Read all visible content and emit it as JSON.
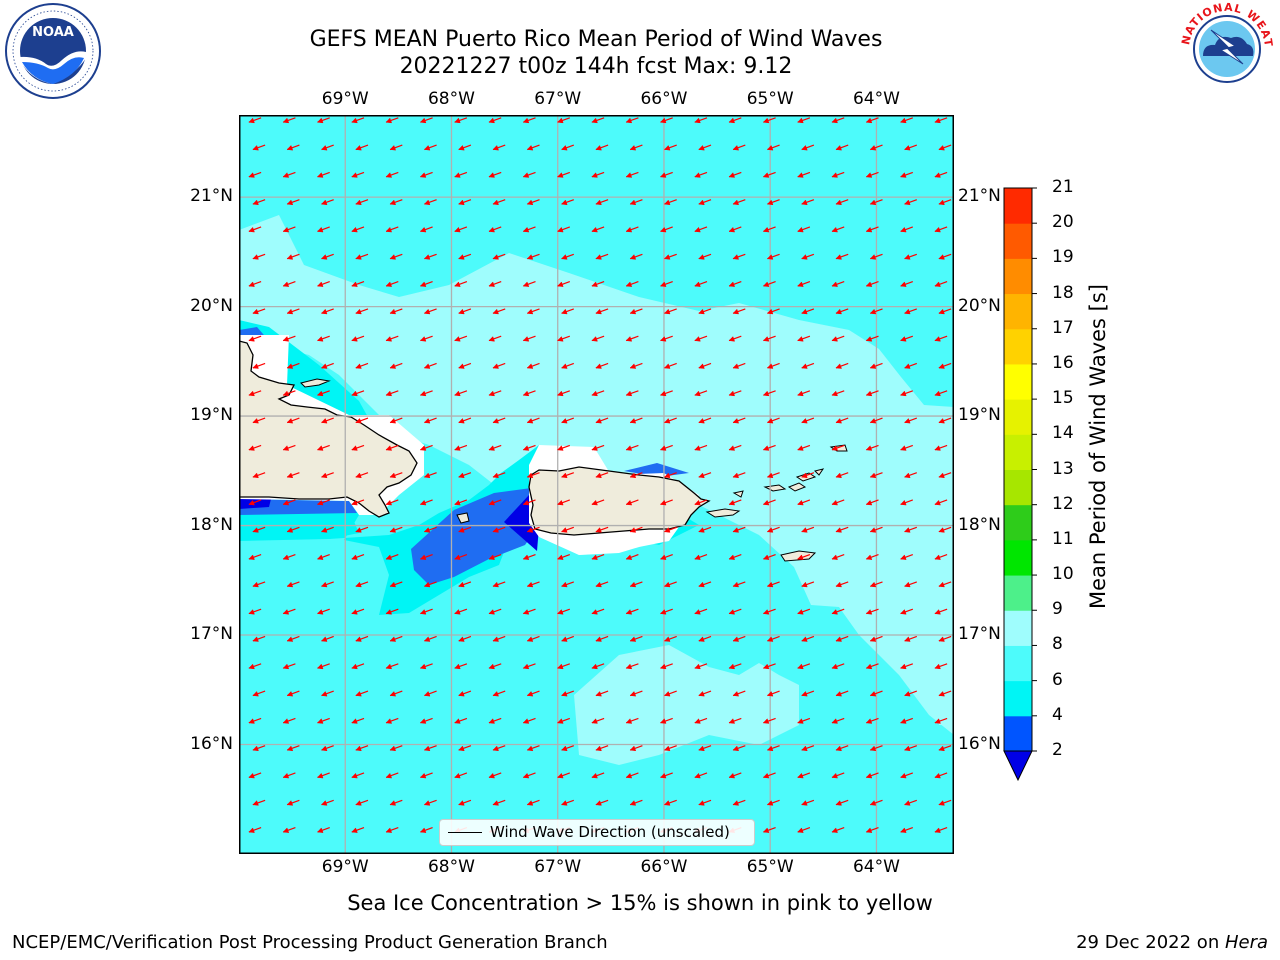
{
  "header": {
    "title_line1": "GEFS MEAN Puerto Rico Mean Period of Wind Waves",
    "title_line2": "20221227 t00z 144h fcst   Max: 9.12"
  },
  "logos": {
    "noara_left": "NOAA",
    "nws_right": "NATIONAL WEATHER SERVICE"
  },
  "map": {
    "lon_labels": [
      "69°W",
      "68°W",
      "67°W",
      "66°W",
      "65°W",
      "64°W"
    ],
    "lat_labels": [
      "21°N",
      "20°N",
      "19°N",
      "18°N",
      "17°N",
      "16°N"
    ],
    "lon_ticks": [
      -69,
      -68,
      -67,
      -66,
      -65,
      -64
    ],
    "lat_ticks": [
      21,
      20,
      19,
      18,
      17,
      16
    ],
    "extent": {
      "lon_min": -70.0,
      "lon_max": -63.27,
      "lat_min": 15.0,
      "lat_max": 21.75
    },
    "wind_wave_direction": "from east-northeast",
    "colors": {
      "ocean_main": "#4dfbfb",
      "ocean_light": "#9ffdfd",
      "ocean_cyan": "#00f5f5",
      "ocean_blue": "#1f6df2",
      "ocean_dark": "#0000e6",
      "land": "#efecdc",
      "arrow": "#ff0000"
    }
  },
  "legend": {
    "label": "Wind Wave Direction (unscaled)"
  },
  "colorbar": {
    "label": "Mean Period of Wind Waves [s]",
    "ticks": [
      "2",
      "4",
      "6",
      "8",
      "9",
      "10",
      "11",
      "12",
      "13",
      "14",
      "15",
      "16",
      "17",
      "18",
      "19",
      "20",
      "21"
    ],
    "colors": [
      "#0055ff",
      "#00f5f5",
      "#4dfbfb",
      "#9ffdfd",
      "#4df08a",
      "#00e600",
      "#2ecc1a",
      "#a7e600",
      "#c8f000",
      "#e6f200",
      "#ffff00",
      "#ffd200",
      "#ffb400",
      "#ff8c00",
      "#ff5a00",
      "#ff2a00"
    ],
    "extend_low_color": "#0000e6"
  },
  "subnote": "Sea Ice Concentration > 15% is shown in pink to yellow",
  "footer": {
    "left": "NCEP/EMC/Verification Post Processing Product Generation Branch",
    "right_prefix": "29 Dec 2022 on ",
    "right_host": "Hera"
  }
}
